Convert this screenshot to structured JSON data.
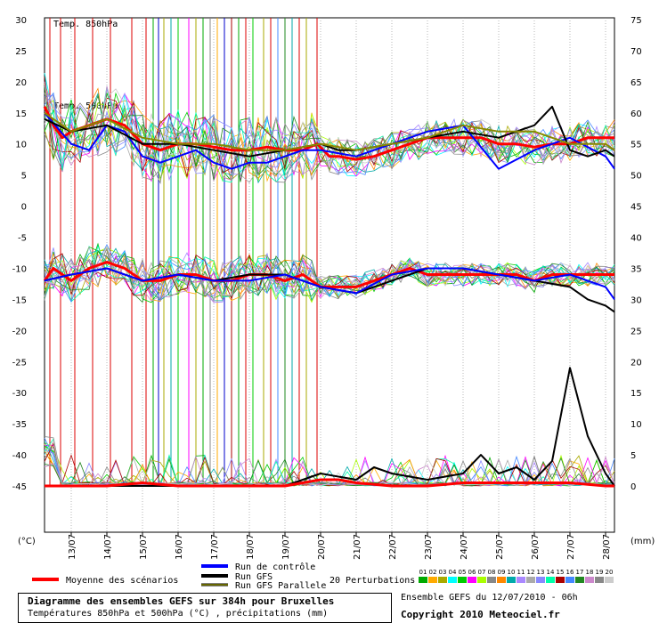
{
  "chart_data": {
    "type": "line",
    "title": "Diagramme des ensembles GEFS sur 384h pour Bruxelles",
    "subtitle": "Températures 850hPa et 500hPa (°C) , précipitations (mm)",
    "left_axis": {
      "unit_label": "(°C)",
      "ticks": [
        30,
        25,
        20,
        15,
        10,
        5,
        0,
        -5,
        -10,
        -15,
        -20,
        -25,
        -30,
        -35,
        -40,
        -45
      ],
      "range": [
        -45,
        30
      ]
    },
    "right_axis": {
      "unit_label": "(mm)",
      "ticks": [
        75,
        70,
        65,
        60,
        55,
        50,
        45,
        40,
        35,
        30,
        25,
        20,
        15,
        10,
        5,
        0
      ],
      "range": [
        0,
        75
      ]
    },
    "x_ticks": [
      "13/07",
      "14/07",
      "15/07",
      "16/07",
      "17/07",
      "18/07",
      "19/07",
      "20/07",
      "21/07",
      "22/07",
      "23/07",
      "24/07",
      "25/07",
      "26/07",
      "27/07",
      "28/07"
    ],
    "x_range_days": [
      12.25,
      28.25
    ],
    "panel_labels": [
      "Temp. 850hPa",
      "Temp. 500hPa"
    ],
    "series": [
      {
        "name": "Moyenne des scénarios",
        "color": "#ff0000",
        "panel": "850hPa",
        "x": [
          12.25,
          12.5,
          12.75,
          13,
          13.5,
          14,
          14.5,
          15,
          15.5,
          16,
          16.5,
          17,
          17.5,
          18,
          18.5,
          19,
          19.5,
          19.9,
          20.25,
          20.5,
          21,
          21.5,
          22,
          22.5,
          23,
          23.5,
          24,
          24.5,
          25,
          25.5,
          26,
          26.5,
          27,
          27.5,
          28,
          28.25
        ],
        "y": [
          16,
          13,
          11,
          12,
          13,
          14,
          13,
          10,
          9,
          10,
          10,
          9.5,
          9,
          9,
          9.5,
          9,
          9,
          10,
          8,
          8,
          7.5,
          8,
          9,
          10,
          11,
          11,
          11,
          11,
          10,
          10,
          9.5,
          10,
          10,
          11,
          11,
          11
        ]
      },
      {
        "name": "Moyenne des scénarios",
        "color": "#ff0000",
        "panel": "500hPa",
        "x": [
          12.25,
          12.5,
          13,
          13.5,
          14,
          14.5,
          15,
          15.5,
          16,
          16.5,
          17,
          17.5,
          18,
          18.5,
          19,
          19.5,
          20,
          20.5,
          21,
          21.5,
          22,
          22.5,
          23,
          23.5,
          24,
          24.5,
          25,
          25.5,
          26,
          26.5,
          27,
          27.5,
          28,
          28.25
        ],
        "y": [
          -12,
          -10,
          -12,
          -10,
          -9,
          -10,
          -12,
          -12,
          -11,
          -11,
          -12,
          -12,
          -11,
          -11,
          -12,
          -11,
          -13,
          -13,
          -13,
          -12,
          -11,
          -10,
          -11,
          -11,
          -11,
          -11,
          -11,
          -11,
          -12,
          -11,
          -11,
          -11,
          -11,
          -11
        ]
      },
      {
        "name": "Run de contrôle",
        "color": "#0000ff",
        "panel": "850hPa",
        "x": [
          12.25,
          13,
          13.5,
          14,
          14.5,
          15,
          15.5,
          16,
          16.5,
          17,
          17.5,
          18,
          18.5,
          19,
          19.5,
          20,
          21,
          22,
          23,
          24,
          25,
          26,
          27,
          28,
          28.25
        ],
        "y": [
          15,
          10,
          9,
          13,
          12,
          8,
          7,
          8,
          9,
          7,
          6,
          7,
          7,
          8,
          9,
          9,
          8,
          10,
          12,
          13,
          6,
          9,
          11,
          8,
          6
        ]
      },
      {
        "name": "Run GFS",
        "color": "#000000",
        "panel": "850hPa",
        "x": [
          12.25,
          13,
          14,
          15,
          16,
          17,
          18,
          19,
          20,
          20.5,
          21,
          22,
          23,
          24,
          25,
          26,
          26.5,
          27,
          27.5,
          28,
          28.25
        ],
        "y": [
          14,
          12,
          13,
          10,
          10,
          9,
          8,
          9,
          10,
          9,
          9,
          10,
          11,
          12,
          11,
          13,
          16,
          9,
          8,
          9,
          8
        ]
      },
      {
        "name": "Run GFS Parallele",
        "color": "#888800",
        "panel": "850hPa",
        "x": [
          12.25,
          13,
          14,
          15,
          16,
          17,
          18,
          19,
          20,
          21,
          22,
          23,
          24,
          25,
          26,
          27,
          28,
          28.25
        ],
        "y": [
          15,
          12,
          14,
          11,
          10,
          10,
          9,
          9,
          10,
          9,
          10,
          11,
          13,
          12,
          12,
          10,
          10,
          9
        ]
      },
      {
        "name": "Run GFS",
        "color": "#000000",
        "panel": "500hPa",
        "x": [
          12.25,
          13,
          14,
          15,
          16,
          17,
          18,
          19,
          20,
          21,
          22,
          23,
          24,
          25,
          26,
          27,
          27.5,
          28,
          28.25
        ],
        "y": [
          -12,
          -11,
          -10,
          -12,
          -11,
          -12,
          -11,
          -11,
          -13,
          -14,
          -12,
          -10,
          -10,
          -11,
          -12,
          -13,
          -15,
          -16,
          -17
        ]
      },
      {
        "name": "Run de contrôle",
        "color": "#0000ff",
        "panel": "500hPa",
        "x": [
          12.25,
          13,
          14,
          15,
          16,
          17,
          18,
          19,
          20,
          21,
          22,
          23,
          24,
          25,
          26,
          27,
          28,
          28.25
        ],
        "y": [
          -12,
          -11,
          -10,
          -12,
          -11,
          -12,
          -12,
          -11,
          -13,
          -14,
          -11,
          -10,
          -10,
          -11,
          -12,
          -11,
          -13,
          -15
        ]
      },
      {
        "name": "Run GFS",
        "color": "#000000",
        "panel": "precip",
        "x": [
          12.25,
          13,
          14,
          15,
          16,
          17,
          18,
          19,
          20,
          21,
          21.5,
          22,
          23,
          24,
          24.5,
          25,
          25.5,
          26,
          26.5,
          27,
          27.5,
          28,
          28.25
        ],
        "y_mm": [
          0,
          0,
          0,
          0,
          0,
          0,
          0,
          0,
          2,
          1,
          3,
          2,
          1,
          2,
          5,
          2,
          3,
          1,
          4,
          19,
          8,
          2,
          0
        ]
      },
      {
        "name": "Moyenne des scénarios",
        "color": "#ff0000",
        "panel": "precip",
        "x": [
          12.25,
          13,
          14,
          15,
          16,
          17,
          18,
          19,
          20,
          20.5,
          21,
          22,
          23,
          24,
          25,
          26,
          27,
          28,
          28.25
        ],
        "y_mm": [
          0,
          0,
          0,
          0.5,
          0,
          0,
          0,
          0,
          1,
          1,
          0.5,
          0,
          0,
          0.5,
          0.5,
          0.5,
          0.5,
          0,
          0
        ]
      }
    ]
  },
  "legend": {
    "moyenne": "Moyenne des scénarios",
    "controle": "Run de contrôle",
    "gfs": "Run GFS",
    "gfs_parallele": "Run GFS Parallele",
    "perturbations": "20 Perturbations",
    "perturbation_numbers": [
      "01",
      "02",
      "03",
      "04",
      "05",
      "06",
      "07",
      "08",
      "09",
      "10",
      "11",
      "12",
      "13",
      "14",
      "15",
      "16",
      "17",
      "18",
      "19",
      "20"
    ],
    "perturbation_colors": [
      "#00aa00",
      "#ffaa00",
      "#aaaa00",
      "#00ffff",
      "#00cc00",
      "#ff00ff",
      "#aaff00",
      "#888888",
      "#ff8800",
      "#00aaaa",
      "#aa88ff",
      "#aaaaaa",
      "#8888ff",
      "#00ffaa",
      "#aa0000",
      "#4488ff",
      "#228822",
      "#cc88cc",
      "#888888",
      "#cccccc"
    ]
  },
  "footer": {
    "title": "Diagramme des ensembles GEFS sur 384h pour Bruxelles",
    "subtitle": "Températures 850hPa et 500hPa (°C) , précipitations (mm)",
    "run_info": "Ensemble GEFS du 12/07/2010 - 06h",
    "copyright": "Copyright 2010 Meteociel.fr"
  }
}
